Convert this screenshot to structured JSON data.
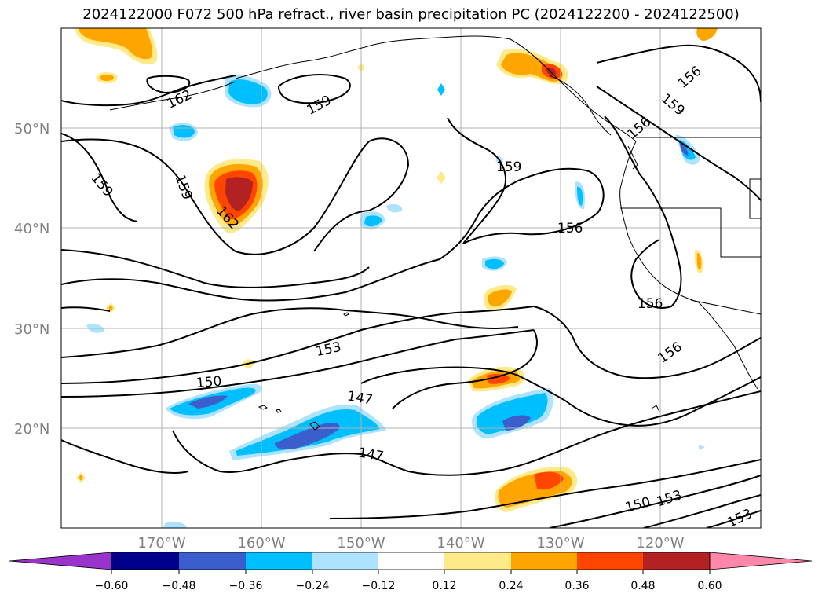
{
  "title": "2024122000 F072 500 hPa refract., river basin precipitation PC (2024122200 - 2024122500)",
  "lat_labels": [
    "50°N",
    "40°N",
    "30°N",
    "20°N"
  ],
  "lon_labels": [
    "170°W",
    "160°W",
    "150°W",
    "140°W",
    "130°W",
    "120°W"
  ],
  "contour_labels": [
    "162",
    "159",
    "159",
    "162",
    "159",
    "156",
    "159",
    "156",
    "156",
    "153",
    "150",
    "147",
    "147",
    "150",
    "153",
    "153",
    "156",
    "156",
    "159"
  ],
  "colorbar": {
    "ticks": [
      "−0.60",
      "−0.48",
      "−0.36",
      "−0.24",
      "−0.12",
      "0.12",
      "0.24",
      "0.36",
      "0.48",
      "0.60"
    ],
    "colors": [
      "#9933cc",
      "#00008b",
      "#3a5fcd",
      "#00bfff",
      "#aee3ff",
      "#ffffff",
      "#ffea8a",
      "#ffa500",
      "#ff4500",
      "#b22222",
      "#ff88aa"
    ]
  },
  "fill_colors": {
    "pos1": "#ffea8a",
    "pos2": "#ffa500",
    "pos3": "#ff4500",
    "pos4": "#b22222",
    "neg1": "#aee3ff",
    "neg2": "#00bfff",
    "neg3": "#3a5fcd",
    "neg4": "#00008b"
  }
}
